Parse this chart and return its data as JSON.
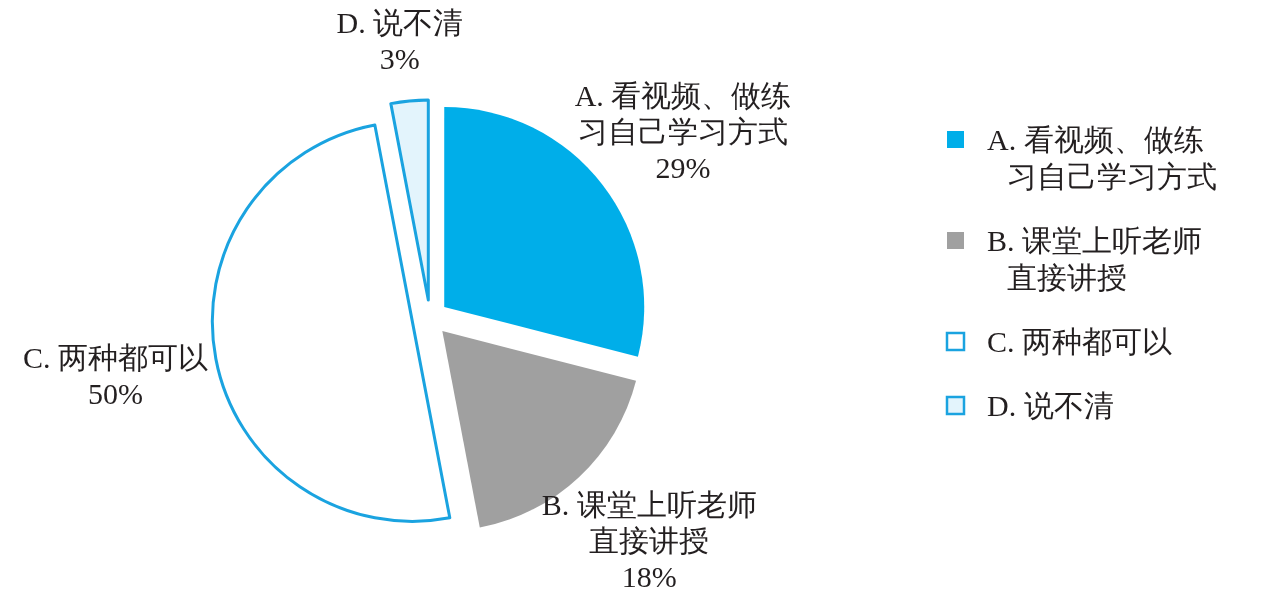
{
  "chart_data": {
    "type": "pie",
    "categories": [
      "A. 看视频、做练习自己学习方式",
      "B. 课堂上听老师直接讲授",
      "C. 两种都可以",
      "D. 说不清"
    ],
    "values": [
      29,
      18,
      50,
      3
    ],
    "colors": [
      "#00aee9",
      "#a0a0a0",
      "#ffffff",
      "#e3f4fc"
    ],
    "value_labels": [
      "29%",
      "18%",
      "50%",
      "3%"
    ],
    "legend": "right"
  }
}
